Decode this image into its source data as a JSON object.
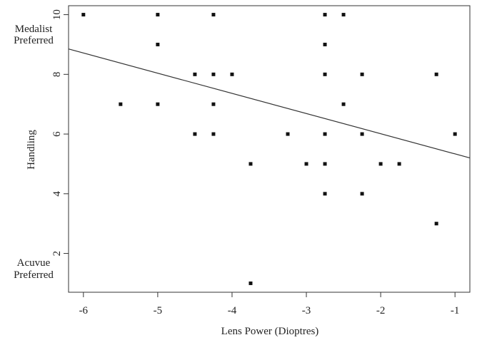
{
  "chart_data": {
    "type": "scatter",
    "title": "",
    "xlabel": "Lens Power (Dioptres)",
    "ylabel": "Handling",
    "xlim": [
      -6.2,
      -0.8
    ],
    "ylim": [
      0.7,
      10.3
    ],
    "xticks": [
      -6,
      -5,
      -4,
      -3,
      -2,
      -1
    ],
    "yticks": [
      2,
      4,
      6,
      8,
      10
    ],
    "grid": false,
    "legend": "none",
    "annotations": {
      "top": [
        "Medalist",
        "Preferred"
      ],
      "bottom": [
        "Acuvue",
        "Preferred"
      ]
    },
    "points": [
      {
        "x": -6.0,
        "y": 10
      },
      {
        "x": -5.0,
        "y": 10
      },
      {
        "x": -4.25,
        "y": 10
      },
      {
        "x": -2.75,
        "y": 10
      },
      {
        "x": -2.5,
        "y": 10
      },
      {
        "x": -5.0,
        "y": 9
      },
      {
        "x": -2.75,
        "y": 9
      },
      {
        "x": -4.5,
        "y": 8
      },
      {
        "x": -4.25,
        "y": 8
      },
      {
        "x": -4.0,
        "y": 8
      },
      {
        "x": -2.75,
        "y": 8
      },
      {
        "x": -2.25,
        "y": 8
      },
      {
        "x": -1.25,
        "y": 8
      },
      {
        "x": -5.5,
        "y": 7
      },
      {
        "x": -5.0,
        "y": 7
      },
      {
        "x": -4.25,
        "y": 7
      },
      {
        "x": -2.5,
        "y": 7
      },
      {
        "x": -4.5,
        "y": 6
      },
      {
        "x": -4.25,
        "y": 6
      },
      {
        "x": -3.25,
        "y": 6
      },
      {
        "x": -2.75,
        "y": 6
      },
      {
        "x": -2.25,
        "y": 6
      },
      {
        "x": -1.0,
        "y": 6
      },
      {
        "x": -3.75,
        "y": 5
      },
      {
        "x": -3.0,
        "y": 5
      },
      {
        "x": -2.75,
        "y": 5
      },
      {
        "x": -2.0,
        "y": 5
      },
      {
        "x": -1.75,
        "y": 5
      },
      {
        "x": -2.75,
        "y": 4
      },
      {
        "x": -2.25,
        "y": 4
      },
      {
        "x": -1.25,
        "y": 3
      },
      {
        "x": -3.75,
        "y": 1
      }
    ],
    "regression_line": {
      "x": [
        -6.2,
        -0.8
      ],
      "y": [
        8.85,
        5.2
      ]
    },
    "colors": {
      "points": "#111111",
      "line": "#333333",
      "axes": "#333333"
    }
  }
}
